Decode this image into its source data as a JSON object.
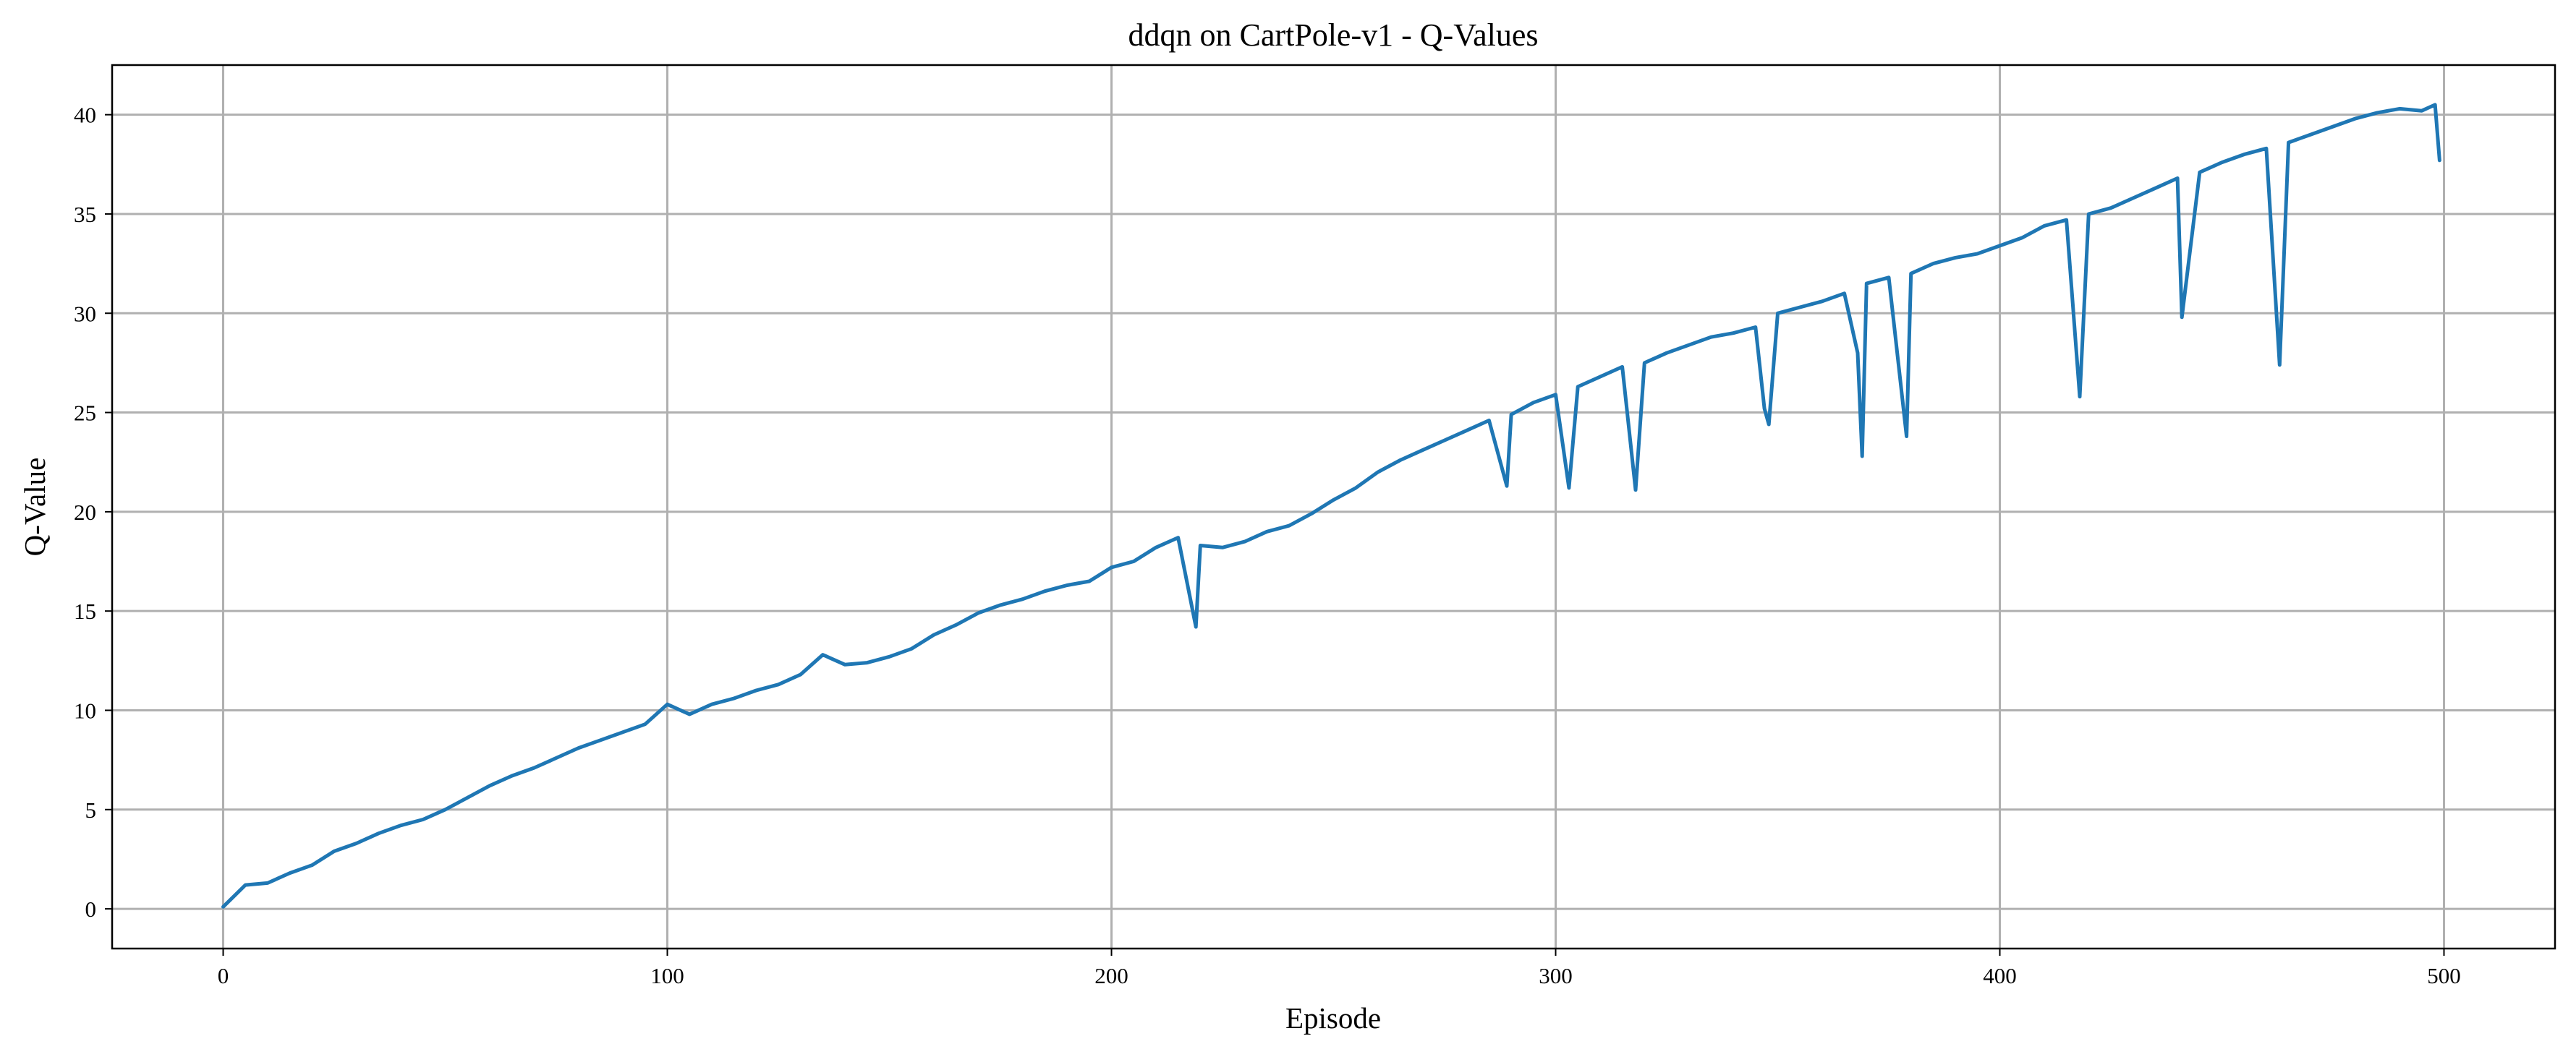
{
  "chart_data": {
    "type": "line",
    "title": "ddqn on CartPole-v1 - Q-Values",
    "xlabel": "Episode",
    "ylabel": "Q-Value",
    "xlim": [
      -25,
      525
    ],
    "ylim": [
      -2,
      42.5
    ],
    "xticks": [
      0,
      100,
      200,
      300,
      400,
      500
    ],
    "yticks": [
      0,
      5,
      10,
      15,
      20,
      25,
      30,
      35,
      40
    ],
    "grid": true,
    "color": "#1f77b4",
    "series": [
      {
        "x": [
          0,
          5,
          10,
          15,
          20,
          25,
          30,
          35,
          40,
          45,
          50,
          55,
          60,
          65,
          70,
          75,
          80,
          85,
          90,
          95,
          100,
          105,
          110,
          115,
          120,
          125,
          130,
          135,
          140,
          145,
          150,
          155,
          160,
          165,
          170,
          175,
          180,
          185,
          190,
          195,
          200,
          205,
          210,
          215,
          219,
          220,
          225,
          230,
          235,
          240,
          245,
          250,
          255,
          260,
          265,
          270,
          275,
          280,
          285,
          289,
          290,
          295,
          300,
          303,
          305,
          310,
          315,
          318,
          320,
          325,
          330,
          335,
          340,
          345,
          347,
          348,
          350,
          355,
          360,
          365,
          368,
          369,
          370,
          375,
          379,
          380,
          385,
          390,
          395,
          400,
          405,
          410,
          415,
          418,
          420,
          425,
          430,
          435,
          440,
          441,
          445,
          450,
          455,
          460,
          463,
          465,
          470,
          475,
          480,
          485,
          490,
          495,
          498,
          499
        ],
        "y": [
          0.1,
          1.2,
          1.3,
          1.8,
          2.2,
          2.9,
          3.3,
          3.8,
          4.2,
          4.5,
          5.0,
          5.6,
          6.2,
          6.7,
          7.1,
          7.6,
          8.1,
          8.5,
          8.9,
          9.3,
          10.3,
          9.8,
          10.3,
          10.6,
          11.0,
          11.3,
          11.8,
          12.8,
          12.3,
          12.4,
          12.7,
          13.1,
          13.8,
          14.3,
          14.9,
          15.3,
          15.6,
          16.0,
          16.3,
          16.5,
          17.2,
          17.5,
          18.2,
          18.7,
          14.2,
          18.3,
          18.2,
          18.5,
          19.0,
          19.3,
          19.9,
          20.6,
          21.2,
          22.0,
          22.6,
          23.1,
          23.6,
          24.1,
          24.6,
          21.3,
          24.9,
          25.5,
          25.9,
          21.2,
          26.3,
          26.8,
          27.3,
          21.1,
          27.5,
          28.0,
          28.4,
          28.8,
          29.0,
          29.3,
          25.2,
          24.4,
          30.0,
          30.3,
          30.6,
          31.0,
          28.0,
          22.8,
          31.5,
          31.8,
          23.8,
          32.0,
          32.5,
          32.8,
          33.0,
          33.4,
          33.8,
          34.4,
          34.7,
          25.8,
          35.0,
          35.3,
          35.8,
          36.3,
          36.8,
          29.8,
          37.1,
          37.6,
          38.0,
          38.3,
          27.4,
          38.6,
          39.0,
          39.4,
          39.8,
          40.1,
          40.3,
          40.2,
          40.5,
          37.7
        ]
      }
    ]
  }
}
